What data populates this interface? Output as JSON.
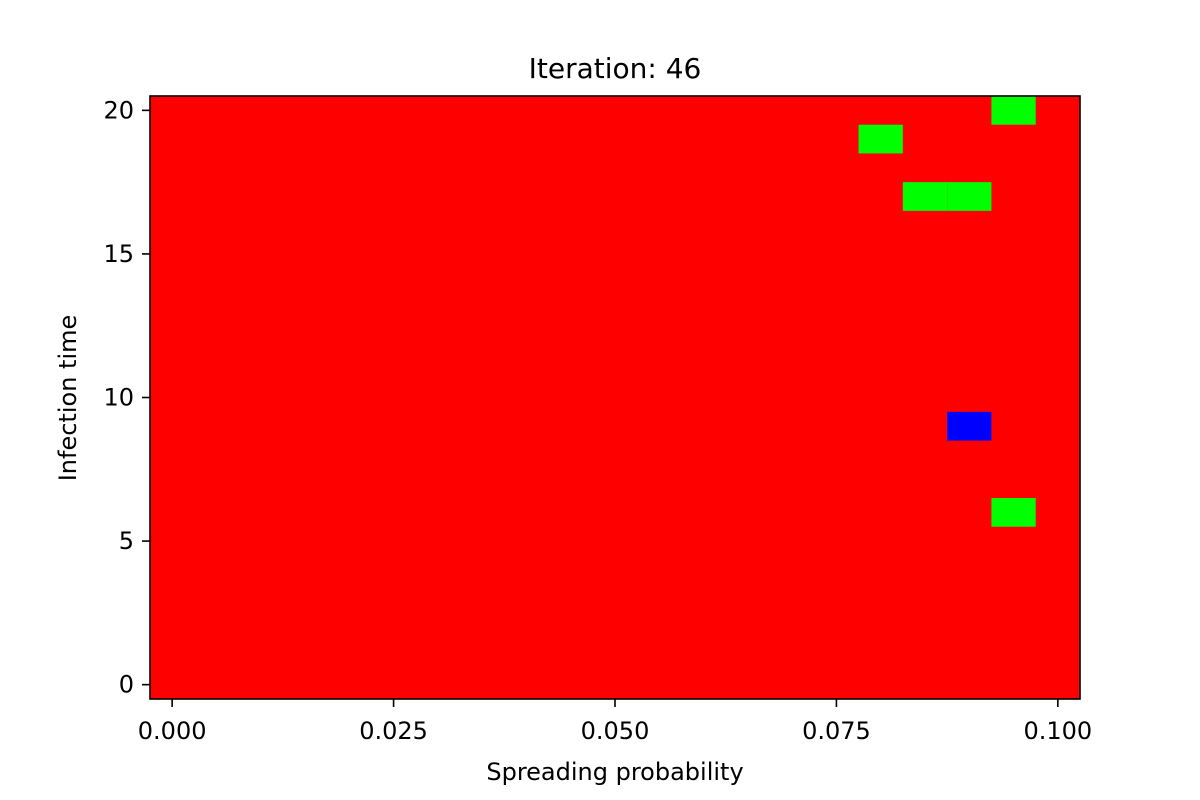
{
  "chart_data": {
    "type": "heatmap",
    "title": "Iteration: 46",
    "xlabel": "Spreading probability",
    "ylabel": "Infection time",
    "xlim": [
      -0.0025,
      0.1025
    ],
    "ylim": [
      -0.5,
      20.5
    ],
    "x_ticks": [
      {
        "value": 0.0,
        "label": "0.000"
      },
      {
        "value": 0.025,
        "label": "0.025"
      },
      {
        "value": 0.05,
        "label": "0.050"
      },
      {
        "value": 0.075,
        "label": "0.075"
      },
      {
        "value": 0.1,
        "label": "0.100"
      }
    ],
    "y_ticks": [
      {
        "value": 0,
        "label": "0"
      },
      {
        "value": 5,
        "label": "5"
      },
      {
        "value": 10,
        "label": "10"
      },
      {
        "value": 15,
        "label": "15"
      },
      {
        "value": 20,
        "label": "20"
      }
    ],
    "cell_width": 0.005,
    "cell_height": 1,
    "background_color": "#ff0000",
    "cells": [
      {
        "x": 0.095,
        "y": 20,
        "color": "#00ff00"
      },
      {
        "x": 0.08,
        "y": 19,
        "color": "#00ff00"
      },
      {
        "x": 0.085,
        "y": 17,
        "color": "#00ff00"
      },
      {
        "x": 0.09,
        "y": 17,
        "color": "#00ff00"
      },
      {
        "x": 0.09,
        "y": 9,
        "color": "#0000ff"
      },
      {
        "x": 0.095,
        "y": 6,
        "color": "#00ff00"
      }
    ],
    "grid": false,
    "legend": "none"
  }
}
